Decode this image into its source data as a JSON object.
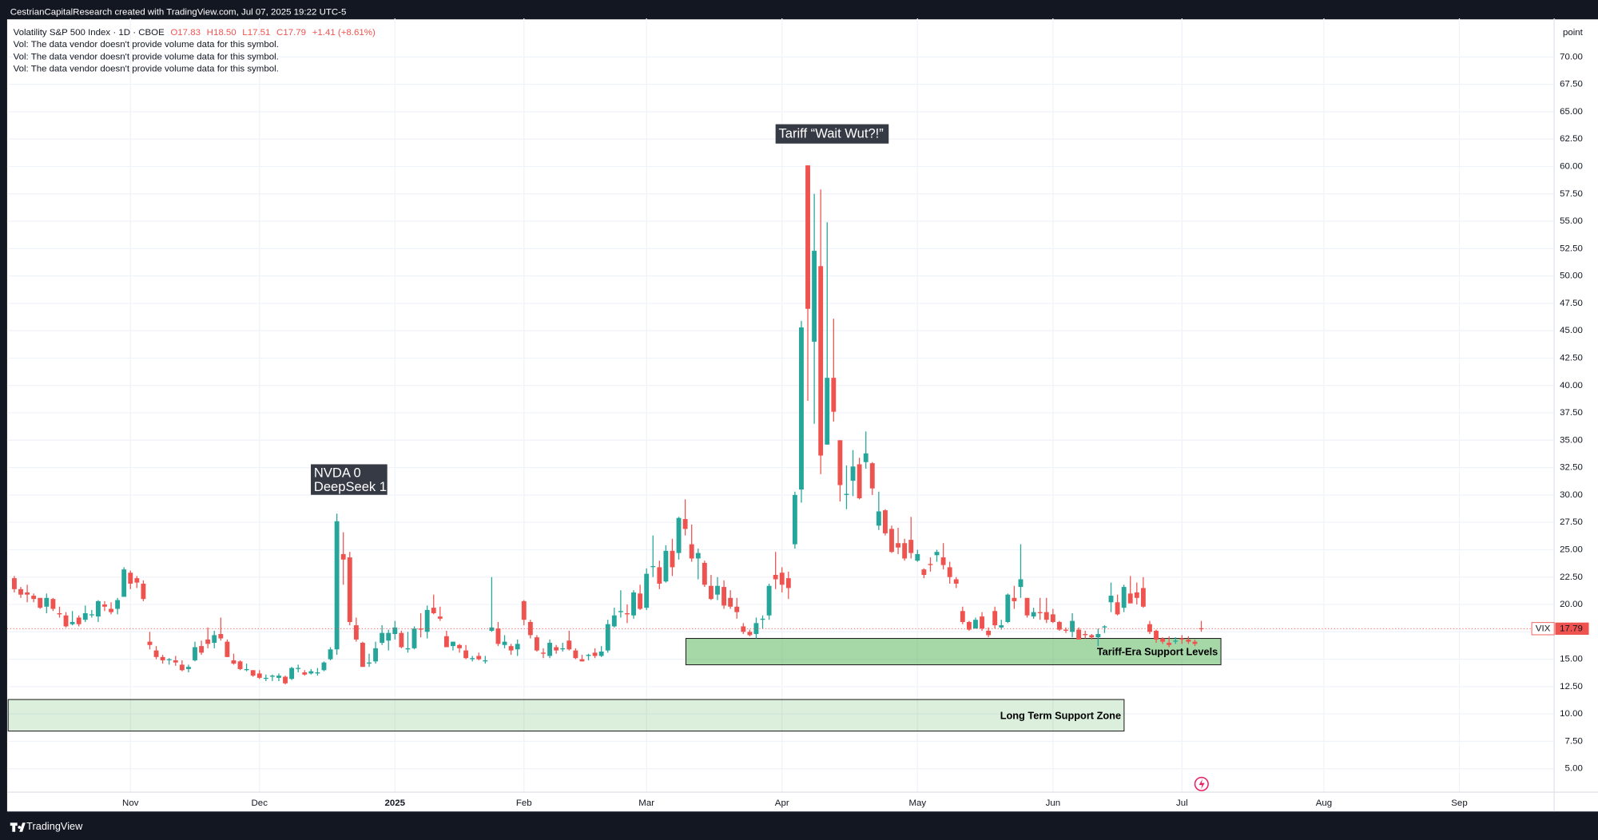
{
  "header": "CestrianCapitalResearch created with TradingView.com, Jul 07, 2025 19:22 UTC-5",
  "footer": "TradingView",
  "chart_data": {
    "type": "candlestick",
    "title": "Volatility S&P 500 Index · 1D · CBOE",
    "legend_values": [
      "O17.83",
      "H18.50",
      "L17.51",
      "C17.79",
      "+1.41 (+8.61%)"
    ],
    "notes": [
      "Vol: The data vendor doesn't provide volume data for this symbol.",
      "Vol: The data vendor doesn't provide volume data for this symbol.",
      "Vol: The data vendor doesn't provide volume data for this symbol."
    ],
    "y_axis_unit": "point",
    "symbol": "VIX",
    "up_color": "#26a69a",
    "down_color": "#ef5350",
    "grid": true,
    "ylim": [
      2.86,
      73.53
    ],
    "yticks": [
      {
        "value": 5,
        "label": "5.00"
      },
      {
        "value": 7.5,
        "label": "7.50"
      },
      {
        "value": 10,
        "label": "10.00"
      },
      {
        "value": 12.5,
        "label": "12.50"
      },
      {
        "value": 15,
        "label": "15.00"
      },
      {
        "value": 17.5,
        "label": "17.50"
      },
      {
        "value": 20,
        "label": "20.00"
      },
      {
        "value": 22.5,
        "label": "22.50"
      },
      {
        "value": 25,
        "label": "25.00"
      },
      {
        "value": 27.5,
        "label": "27.50"
      },
      {
        "value": 30,
        "label": "30.00"
      },
      {
        "value": 32.5,
        "label": "32.50"
      },
      {
        "value": 35,
        "label": "35.00"
      },
      {
        "value": 37.5,
        "label": "37.50"
      },
      {
        "value": 40,
        "label": "40.00"
      },
      {
        "value": 42.5,
        "label": "42.50"
      },
      {
        "value": 45,
        "label": "45.00"
      },
      {
        "value": 47.5,
        "label": "47.50"
      },
      {
        "value": 50,
        "label": "50.00"
      },
      {
        "value": 52.5,
        "label": "52.50"
      },
      {
        "value": 55,
        "label": "55.00"
      },
      {
        "value": 57.5,
        "label": "57.50"
      },
      {
        "value": 60,
        "label": "60.00"
      },
      {
        "value": 62.5,
        "label": "62.50"
      },
      {
        "value": 65,
        "label": "65.00"
      },
      {
        "value": 67.5,
        "label": "67.50"
      },
      {
        "value": 70,
        "label": "70.00"
      }
    ],
    "annotations": [
      {
        "lines": [
          "Tariff “Wait Wut?!”"
        ]
      },
      {
        "lines": [
          "NVDA 0",
          "DeepSeek 1"
        ]
      }
    ],
    "zones": [
      {
        "label": "Tariff-Era Support Levels",
        "range": [
          14.49,
          16.9
        ]
      },
      {
        "label": "Long Term Support Zone",
        "range": [
          8.44,
          11.32
        ]
      }
    ],
    "categories": [
      null,
      null,
      null,
      null,
      null,
      null,
      null,
      null,
      null,
      null,
      null,
      null,
      null,
      null,
      null,
      null,
      null,
      null,
      "Nov",
      null,
      null,
      null,
      null,
      null,
      null,
      null,
      null,
      null,
      null,
      null,
      null,
      null,
      null,
      null,
      null,
      null,
      null,
      null,
      "Dec",
      null,
      null,
      null,
      null,
      null,
      null,
      null,
      null,
      null,
      null,
      null,
      null,
      null,
      null,
      null,
      null,
      null,
      null,
      null,
      null,
      "2025",
      null,
      null,
      null,
      null,
      null,
      null,
      null,
      null,
      null,
      null,
      null,
      null,
      null,
      null,
      null,
      null,
      null,
      null,
      null,
      "Feb",
      null,
      null,
      null,
      null,
      null,
      null,
      null,
      null,
      null,
      null,
      null,
      null,
      null,
      null,
      null,
      null,
      null,
      null,
      "Mar",
      null,
      null,
      null,
      null,
      null,
      null,
      null,
      null,
      null,
      null,
      null,
      null,
      null,
      null,
      null,
      null,
      null,
      null,
      null,
      null,
      "Apr",
      null,
      null,
      null,
      null,
      null,
      null,
      null,
      null,
      null,
      null,
      null,
      null,
      null,
      null,
      null,
      null,
      null,
      null,
      null,
      null,
      "May",
      null,
      null,
      null,
      null,
      null,
      null,
      null,
      null,
      null,
      null,
      null,
      null,
      null,
      null,
      null,
      null,
      null,
      null,
      null,
      null,
      "Jun",
      null,
      null,
      null,
      null,
      null,
      null,
      null,
      null,
      null,
      null,
      null,
      null,
      null,
      null,
      null,
      null,
      null,
      null,
      null,
      "Jul",
      null,
      null,
      null,
      null,
      null,
      null,
      null,
      null,
      null,
      null,
      null,
      null,
      null,
      null,
      null,
      null,
      null,
      null,
      null,
      null,
      null,
      "Aug",
      null,
      null,
      null,
      null,
      null,
      null,
      null,
      null,
      null,
      null,
      null,
      null,
      null,
      null,
      null,
      null,
      null,
      null,
      null,
      null,
      "Sep"
    ],
    "open": [
      22.4,
      21.4,
      21.1,
      20.8,
      20.6,
      19.8,
      20.5,
      19.2,
      19.0,
      18.2,
      18.8,
      18.6,
      19.1,
      18.9,
      20.0,
      19.6,
      19.6,
      20.7,
      22.9,
      22.4,
      21.9,
      16.6,
      15.8,
      15.2,
      15.0,
      14.9,
      14.5,
      14.1,
      14.9,
      16.2,
      16.8,
      16.5,
      17.3,
      16.6,
      14.9,
      14.8,
      14.0,
      14.0,
      13.7,
      13.3,
      13.4,
      13.3,
      13.4,
      13.2,
      14.2,
      13.8,
      13.7,
      13.7,
      14.0,
      15.0,
      15.9,
      24.6,
      24.3,
      18.1,
      16.5,
      14.6,
      14.8,
      16.5,
      16.7,
      17.3,
      17.4,
      15.9,
      16.0,
      17.8,
      17.5,
      19.7,
      18.9,
      17.1,
      16.2,
      16.3,
      15.8,
      15.0,
      15.3,
      14.8,
      17.6,
      17.8,
      16.3,
      16.2,
      15.9,
      20.3,
      18.4,
      17.0,
      15.6,
      15.3,
      16.1,
      15.9,
      16.7,
      15.8,
      15.0,
      15.3,
      15.6,
      15.3,
      15.8,
      18.0,
      19.3,
      19.2,
      19.0,
      21.0,
      19.7,
      23.5,
      23.4,
      22.1,
      24.9,
      24.7,
      27.8,
      25.5,
      24.2,
      23.8,
      21.7,
      20.9,
      21.6,
      20.6,
      19.8,
      18.0,
      17.5,
      17.3,
      18.6,
      19.0,
      22.7,
      22.9,
      22.4,
      25.5,
      30.5,
      60.1,
      44.0,
      50.9,
      34.6,
      40.7,
      35.0,
      30.0,
      31.3,
      32.8,
      33.0,
      32.9,
      27.2,
      28.6,
      26.9,
      25.6,
      25.6,
      25.9,
      24.0,
      23.2,
      23.7,
      24.5,
      24.3,
      23.4,
      22.3,
      19.4,
      18.4,
      17.8,
      18.9,
      17.6,
      19.4,
      17.9,
      18.4,
      20.6,
      21.6,
      20.6,
      18.9,
      19.3,
      19.3,
      19.1,
      18.4,
      17.7,
      17.5,
      17.7,
      17.3,
      17.2,
      17.0,
      17.9,
      20.2,
      20.2,
      19.7,
      21.0,
      21.1,
      21.5,
      18.2,
      17.6,
      16.9,
      16.5,
      16.7,
      16.9,
      16.8,
      16.6,
      17.83,
      null,
      null,
      null,
      null,
      null,
      null,
      null,
      null,
      null,
      null,
      null,
      null,
      null,
      null,
      null,
      null,
      null,
      null,
      null,
      null,
      null,
      null,
      null,
      null,
      null,
      null,
      null,
      null,
      null,
      null,
      null,
      null,
      null,
      null,
      null,
      null,
      null,
      null,
      null,
      null
    ],
    "high": [
      22.6,
      21.6,
      21.8,
      21.0,
      20.6,
      21.0,
      20.6,
      19.8,
      19.3,
      19.4,
      19.0,
      19.9,
      19.5,
      20.4,
      20.3,
      20.2,
      20.6,
      23.4,
      23.1,
      22.6,
      22.2,
      17.5,
      16.2,
      15.4,
      15.1,
      15.3,
      14.9,
      14.5,
      16.6,
      16.7,
      17.9,
      17.6,
      18.8,
      16.8,
      15.5,
      14.9,
      14.6,
      14.0,
      14.0,
      13.6,
      13.6,
      13.7,
      13.5,
      14.3,
      14.5,
      14.0,
      14.1,
      14.2,
      14.8,
      16.1,
      28.3,
      26.6,
      24.8,
      18.8,
      16.6,
      15.5,
      16.6,
      18.1,
      17.7,
      18.5,
      17.6,
      17.5,
      18.0,
      19.2,
      19.9,
      20.9,
      19.8,
      17.6,
      16.6,
      16.4,
      16.3,
      15.3,
      15.6,
      15.3,
      22.5,
      18.4,
      17.2,
      16.4,
      16.8,
      20.4,
      18.6,
      17.2,
      16.0,
      16.8,
      16.3,
      16.5,
      17.6,
      16.0,
      15.4,
      15.5,
      16.0,
      16.2,
      18.6,
      19.7,
      21.3,
      20.0,
      21.3,
      21.8,
      23.3,
      26.3,
      24.0,
      25.4,
      26.0,
      28.0,
      29.6,
      27.3,
      25.1,
      24.0,
      22.7,
      22.5,
      22.2,
      21.3,
      20.6,
      18.3,
      17.7,
      18.8,
      19.0,
      21.9,
      24.8,
      23.4,
      23.0,
      30.3,
      45.9,
      60.1,
      57.5,
      57.9,
      54.9,
      46.1,
      35.0,
      32.7,
      34.1,
      33.4,
      35.8,
      33.0,
      30.3,
      28.7,
      27.2,
      27.0,
      26.0,
      28.0,
      25.0,
      23.3,
      24.3,
      25.0,
      25.6,
      23.9,
      22.5,
      19.8,
      18.5,
      18.8,
      19.3,
      17.9,
      19.8,
      18.6,
      21.0,
      21.7,
      25.5,
      20.6,
      19.7,
      20.6,
      20.6,
      19.6,
      18.5,
      17.9,
      19.2,
      17.9,
      17.6,
      17.3,
      17.8,
      18.1,
      22.0,
      20.9,
      21.8,
      22.6,
      22.0,
      22.5,
      18.5,
      17.7,
      17.0,
      17.1,
      17.0,
      17.2,
      17.1,
      16.8,
      18.5,
      null,
      null,
      null,
      null,
      null,
      null,
      null,
      null,
      null,
      null,
      null,
      null,
      null,
      null,
      null,
      null,
      null,
      null,
      null,
      null,
      null,
      null,
      null,
      null,
      null,
      null,
      null,
      null,
      null,
      null,
      null,
      null,
      null,
      null,
      null,
      null,
      null,
      null,
      null,
      null
    ],
    "low": [
      21.1,
      20.6,
      20.2,
      20.2,
      19.6,
      19.2,
      19.4,
      18.8,
      17.9,
      18.1,
      18.0,
      18.4,
      18.8,
      18.4,
      19.4,
      19.1,
      19.1,
      20.7,
      21.4,
      21.5,
      20.3,
      15.9,
      15.0,
      14.6,
      14.5,
      14.4,
      13.9,
      13.8,
      14.8,
      15.4,
      16.0,
      16.0,
      16.7,
      15.2,
      14.5,
      14.0,
      13.9,
      13.4,
      13.2,
      13.0,
      13.0,
      13.0,
      12.7,
      13.1,
      13.8,
      13.5,
      13.6,
      13.5,
      13.9,
      14.9,
      15.4,
      21.8,
      18.1,
      16.6,
      14.3,
      14.3,
      14.6,
      16.3,
      15.8,
      16.8,
      16.0,
      15.6,
      15.9,
      17.0,
      16.9,
      19.1,
      18.5,
      16.1,
      15.8,
      15.6,
      15.0,
      14.8,
      14.9,
      14.6,
      17.5,
      16.2,
      16.0,
      15.4,
      15.3,
      18.1,
      16.9,
      15.7,
      15.1,
      15.1,
      15.5,
      15.7,
      15.8,
      15.0,
      14.8,
      14.9,
      15.1,
      15.2,
      15.6,
      17.9,
      18.8,
      18.3,
      18.7,
      19.5,
      19.5,
      22.5,
      21.4,
      22.0,
      22.6,
      24.1,
      26.3,
      23.9,
      22.3,
      21.6,
      20.4,
      20.4,
      19.6,
      19.6,
      18.7,
      17.3,
      17.1,
      16.9,
      17.8,
      18.6,
      21.4,
      21.1,
      20.5,
      25.1,
      29.3,
      38.6,
      36.5,
      31.9,
      34.6,
      36.7,
      29.4,
      28.7,
      29.9,
      29.6,
      32.4,
      30.0,
      26.8,
      26.3,
      24.7,
      24.6,
      24.0,
      24.2,
      23.9,
      22.4,
      23.0,
      23.9,
      23.2,
      21.9,
      21.5,
      18.2,
      17.6,
      17.8,
      17.6,
      17.0,
      17.8,
      17.7,
      18.3,
      19.6,
      20.6,
      18.8,
      18.7,
      18.6,
      18.3,
      18.3,
      17.6,
      17.4,
      17.0,
      16.8,
      16.9,
      16.8,
      16.2,
      17.4,
      19.3,
      19.0,
      19.3,
      20.1,
      20.0,
      19.7,
      17.3,
      16.5,
      16.4,
      16.1,
      16.4,
      16.4,
      16.4,
      16.2,
      17.51,
      null,
      null,
      null,
      null,
      null,
      null,
      null,
      null,
      null,
      null,
      null,
      null,
      null,
      null,
      null,
      null,
      null,
      null,
      null,
      null,
      null,
      null,
      null,
      null,
      null,
      null,
      null,
      null,
      null,
      null,
      null,
      null,
      null,
      null,
      null,
      null,
      null,
      null,
      null,
      null
    ],
    "close": [
      21.4,
      20.9,
      20.9,
      20.5,
      19.7,
      20.6,
      19.6,
      19.1,
      18.0,
      18.4,
      18.2,
      19.2,
      19.1,
      20.3,
      19.8,
      19.3,
      20.4,
      23.2,
      21.9,
      22.0,
      20.5,
      16.3,
      15.2,
      14.9,
      15.0,
      14.7,
      14.0,
      14.3,
      16.1,
      15.6,
      16.4,
      17.2,
      16.9,
      15.2,
      14.6,
      14.1,
      14.1,
      13.5,
      13.3,
      13.3,
      13.5,
      13.5,
      12.8,
      14.2,
      14.2,
      13.6,
      13.9,
      13.8,
      14.7,
      15.9,
      27.6,
      24.1,
      18.4,
      16.8,
      14.3,
      14.7,
      16.0,
      17.4,
      17.4,
      17.9,
      16.1,
      16.0,
      17.8,
      17.7,
      19.5,
      19.2,
      18.7,
      16.1,
      16.6,
      16.0,
      15.1,
      15.1,
      15.0,
      14.9,
      17.9,
      16.4,
      16.6,
      15.8,
      16.4,
      18.6,
      17.2,
      15.8,
      15.5,
      16.5,
      15.8,
      16.0,
      15.9,
      15.1,
      14.8,
      15.4,
      15.3,
      15.7,
      18.2,
      19.0,
      19.4,
      19.1,
      21.1,
      19.6,
      22.8,
      23.5,
      21.9,
      24.9,
      23.4,
      27.9,
      26.9,
      24.2,
      24.7,
      21.8,
      20.5,
      21.7,
      19.9,
      19.8,
      19.3,
      17.5,
      17.2,
      18.3,
      18.7,
      21.7,
      22.3,
      21.8,
      21.5,
      30.0,
      45.3,
      47.0,
      52.3,
      33.6,
      40.7,
      37.6,
      30.9,
      30.1,
      32.6,
      29.7,
      33.8,
      30.6,
      28.5,
      26.5,
      24.8,
      25.2,
      24.2,
      24.7,
      24.6,
      22.7,
      23.6,
      24.8,
      23.6,
      22.5,
      21.9,
      18.4,
      17.7,
      18.6,
      17.8,
      17.2,
      18.1,
      18.1,
      20.9,
      20.3,
      22.3,
      19.0,
      19.3,
      19.2,
      18.6,
      18.4,
      17.7,
      17.6,
      18.5,
      16.8,
      17.2,
      17.0,
      17.3,
      18.0,
      20.8,
      19.1,
      21.6,
      20.1,
      20.6,
      19.8,
      17.5,
      16.8,
      16.6,
      16.3,
      16.7,
      16.8,
      16.6,
      16.4,
      17.79,
      null,
      null,
      null,
      null,
      null,
      null,
      null,
      null,
      null,
      null,
      null,
      null,
      null,
      null,
      null,
      null,
      null,
      null,
      null,
      null,
      null,
      null,
      null,
      null,
      null,
      null,
      null,
      null,
      null,
      null,
      null,
      null,
      null,
      null,
      null,
      null,
      null,
      null,
      null,
      null
    ]
  }
}
